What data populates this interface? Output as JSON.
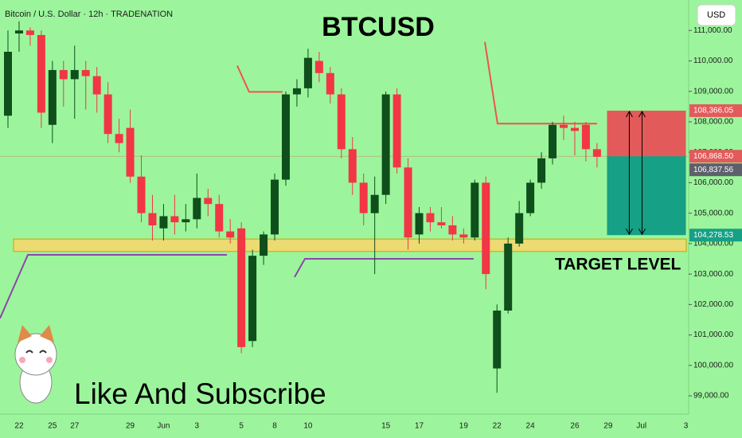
{
  "chart_data": {
    "type": "candlestick",
    "title": "BTCUSD",
    "subtitle": "Bitcoin / U.S. Dollar · 12h · TRADENATION",
    "currency": "USD",
    "annotations": [
      "TARGET LEVEL",
      "Like And Subscribe"
    ],
    "categories": [
      null,
      "22",
      null,
      null,
      "25",
      null,
      "27",
      null,
      null,
      null,
      null,
      "29",
      null,
      null,
      "Jun",
      null,
      null,
      "3",
      null,
      null,
      null,
      "5",
      null,
      null,
      "8",
      null,
      null,
      "10",
      null,
      null,
      null,
      null,
      null,
      null,
      "15",
      null,
      null,
      "17",
      null,
      null,
      null,
      "19",
      null,
      null,
      "22",
      null,
      null,
      "24",
      null,
      null,
      null,
      "26",
      null,
      null,
      "29",
      null,
      null,
      "Jul",
      null,
      null,
      null,
      "3"
    ],
    "open": [
      108200,
      110900,
      111000,
      110850,
      107900,
      109700,
      109400,
      109700,
      109500,
      108900,
      107600,
      107800,
      106200,
      105000,
      104500,
      104900,
      104700,
      104800,
      105500,
      105300,
      104400,
      104500,
      100800,
      103600,
      104300,
      106100,
      108900,
      109100,
      110000,
      109600,
      108900,
      107100,
      106000,
      105000,
      105600,
      108900,
      106500,
      104300,
      105000,
      104700,
      104600,
      104300,
      104200,
      106000,
      99900,
      101800,
      104000,
      105000,
      106000,
      106800,
      107900,
      107800,
      107900,
      107100,
      null,
      null,
      null,
      null,
      null,
      null,
      null,
      null
    ],
    "high": [
      111000,
      111300,
      111100,
      111000,
      110000,
      110000,
      110500,
      110000,
      109800,
      109300,
      108100,
      108400,
      106900,
      105600,
      105300,
      105600,
      105300,
      106300,
      105800,
      105600,
      104800,
      104700,
      103800,
      104400,
      106300,
      109000,
      109400,
      110400,
      110300,
      109800,
      109100,
      107500,
      106300,
      106200,
      109000,
      109100,
      106800,
      105200,
      105200,
      105200,
      104900,
      104500,
      106100,
      106200,
      102000,
      104200,
      105400,
      106100,
      107000,
      108000,
      108200,
      108000,
      108000,
      107300,
      null,
      null,
      null,
      null,
      null,
      null,
      null,
      null
    ],
    "low": [
      107800,
      110300,
      110500,
      107800,
      107300,
      108500,
      108100,
      108400,
      108300,
      107300,
      107000,
      106000,
      104700,
      104100,
      104100,
      104300,
      104400,
      104500,
      104900,
      104200,
      104000,
      100400,
      100600,
      103300,
      104100,
      105900,
      108500,
      108800,
      109300,
      108600,
      106800,
      105600,
      104600,
      103000,
      105300,
      106300,
      103800,
      104000,
      104400,
      104500,
      104100,
      104000,
      104100,
      102500,
      99100,
      101700,
      103900,
      104900,
      105800,
      106600,
      107400,
      106900,
      106700,
      106500,
      null,
      null,
      null,
      null,
      null,
      null,
      null,
      null
    ],
    "close": [
      110300,
      111000,
      110850,
      108300,
      109700,
      109400,
      109700,
      109500,
      108900,
      107600,
      107300,
      106200,
      105000,
      104600,
      104900,
      104700,
      104800,
      105500,
      105300,
      104400,
      104200,
      100600,
      103600,
      104300,
      106100,
      108900,
      109100,
      110100,
      109600,
      108900,
      107100,
      106000,
      105000,
      105600,
      108900,
      106500,
      104200,
      105000,
      104700,
      104600,
      104300,
      104200,
      106000,
      103000,
      101800,
      104000,
      105000,
      106000,
      106800,
      107900,
      107800,
      107700,
      107100,
      106850,
      null,
      null,
      null,
      null,
      null,
      null,
      null,
      null
    ],
    "up_color": "#0e4f1c",
    "down_color": "#f23645",
    "ylim": [
      98400,
      112000
    ],
    "yticks": [
      {
        "value": 99000,
        "label": "99,000.00"
      },
      {
        "value": 100000,
        "label": "100,000.00"
      },
      {
        "value": 101000,
        "label": "101,000.00"
      },
      {
        "value": 102000,
        "label": "102,000.00"
      },
      {
        "value": 103000,
        "label": "103,000.00"
      },
      {
        "value": 104000,
        "label": "104,000.00"
      },
      {
        "value": 105000,
        "label": "105,000.00"
      },
      {
        "value": 106000,
        "label": "106,000.00"
      },
      {
        "value": 107000,
        "label": "107,000.00"
      },
      {
        "value": 108000,
        "label": "108,000.00"
      },
      {
        "value": 109000,
        "label": "109,000.00"
      },
      {
        "value": 110000,
        "label": "110,000.00"
      },
      {
        "value": 111000,
        "label": "111,000.00"
      }
    ],
    "zone": {
      "low": 103740,
      "high": 104150,
      "color": "#f5d76e"
    },
    "position": {
      "start": 53.9,
      "end": 61,
      "stop": 108366.05,
      "entry": 106868.5,
      "target": 104278.53,
      "stop_label": "108,366.05",
      "entry_label": "106,868.50",
      "target_label": "104,278.53",
      "stop_color": "#e35a5a",
      "target_color": "#16a085"
    },
    "last_price": {
      "value": 106837.56,
      "label": "106,837.56",
      "color": "#5d606b"
    },
    "lines": [
      {
        "color": "#8e44ad",
        "x": [
          -0.72,
          1.79,
          19.7
        ],
        "values": [
          101544,
          103632,
          103632
        ]
      },
      {
        "color": "#8e44ad",
        "x": [
          25.79,
          26.72,
          41.9
        ],
        "values": [
          102901,
          103501,
          103501
        ]
      },
      {
        "color": "#f0544f",
        "x": [
          20.63,
          21.7,
          24.71
        ],
        "values": [
          109843,
          108982,
          108982
        ]
      },
      {
        "color": "#f0544f",
        "x": [
          42.91,
          44.05,
          53.01
        ],
        "values": [
          110626,
          107938,
          107938
        ]
      }
    ]
  }
}
